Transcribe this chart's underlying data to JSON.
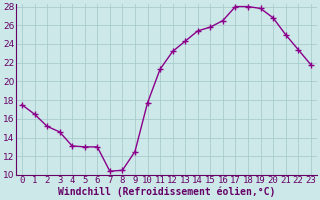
{
  "x": [
    0,
    1,
    2,
    3,
    4,
    5,
    6,
    7,
    8,
    9,
    10,
    11,
    12,
    13,
    14,
    15,
    16,
    17,
    18,
    19,
    20,
    21,
    22,
    23
  ],
  "y": [
    17.5,
    16.5,
    15.2,
    14.6,
    13.1,
    13.0,
    13.0,
    10.4,
    10.5,
    12.5,
    17.7,
    21.3,
    23.2,
    24.3,
    25.4,
    25.8,
    26.5,
    28.0,
    28.0,
    27.8,
    26.8,
    25.0,
    23.4,
    21.8
  ],
  "line_color": "#8b008b",
  "marker": "+",
  "marker_size": 4,
  "marker_linewidth": 1.0,
  "line_width": 1.0,
  "bg_color": "#cce8e8",
  "grid_color": "#aacccc",
  "xlabel": "Windchill (Refroidissement éolien,°C)",
  "xlabel_fontsize": 7,
  "tick_fontsize": 6.5,
  "ylim": [
    10,
    28
  ],
  "xlim": [
    -0.5,
    23.5
  ],
  "yticks": [
    10,
    12,
    14,
    16,
    18,
    20,
    22,
    24,
    26,
    28
  ],
  "xticks": [
    0,
    1,
    2,
    3,
    4,
    5,
    6,
    7,
    8,
    9,
    10,
    11,
    12,
    13,
    14,
    15,
    16,
    17,
    18,
    19,
    20,
    21,
    22,
    23
  ],
  "spine_color": "#660066",
  "label_color": "#660066"
}
